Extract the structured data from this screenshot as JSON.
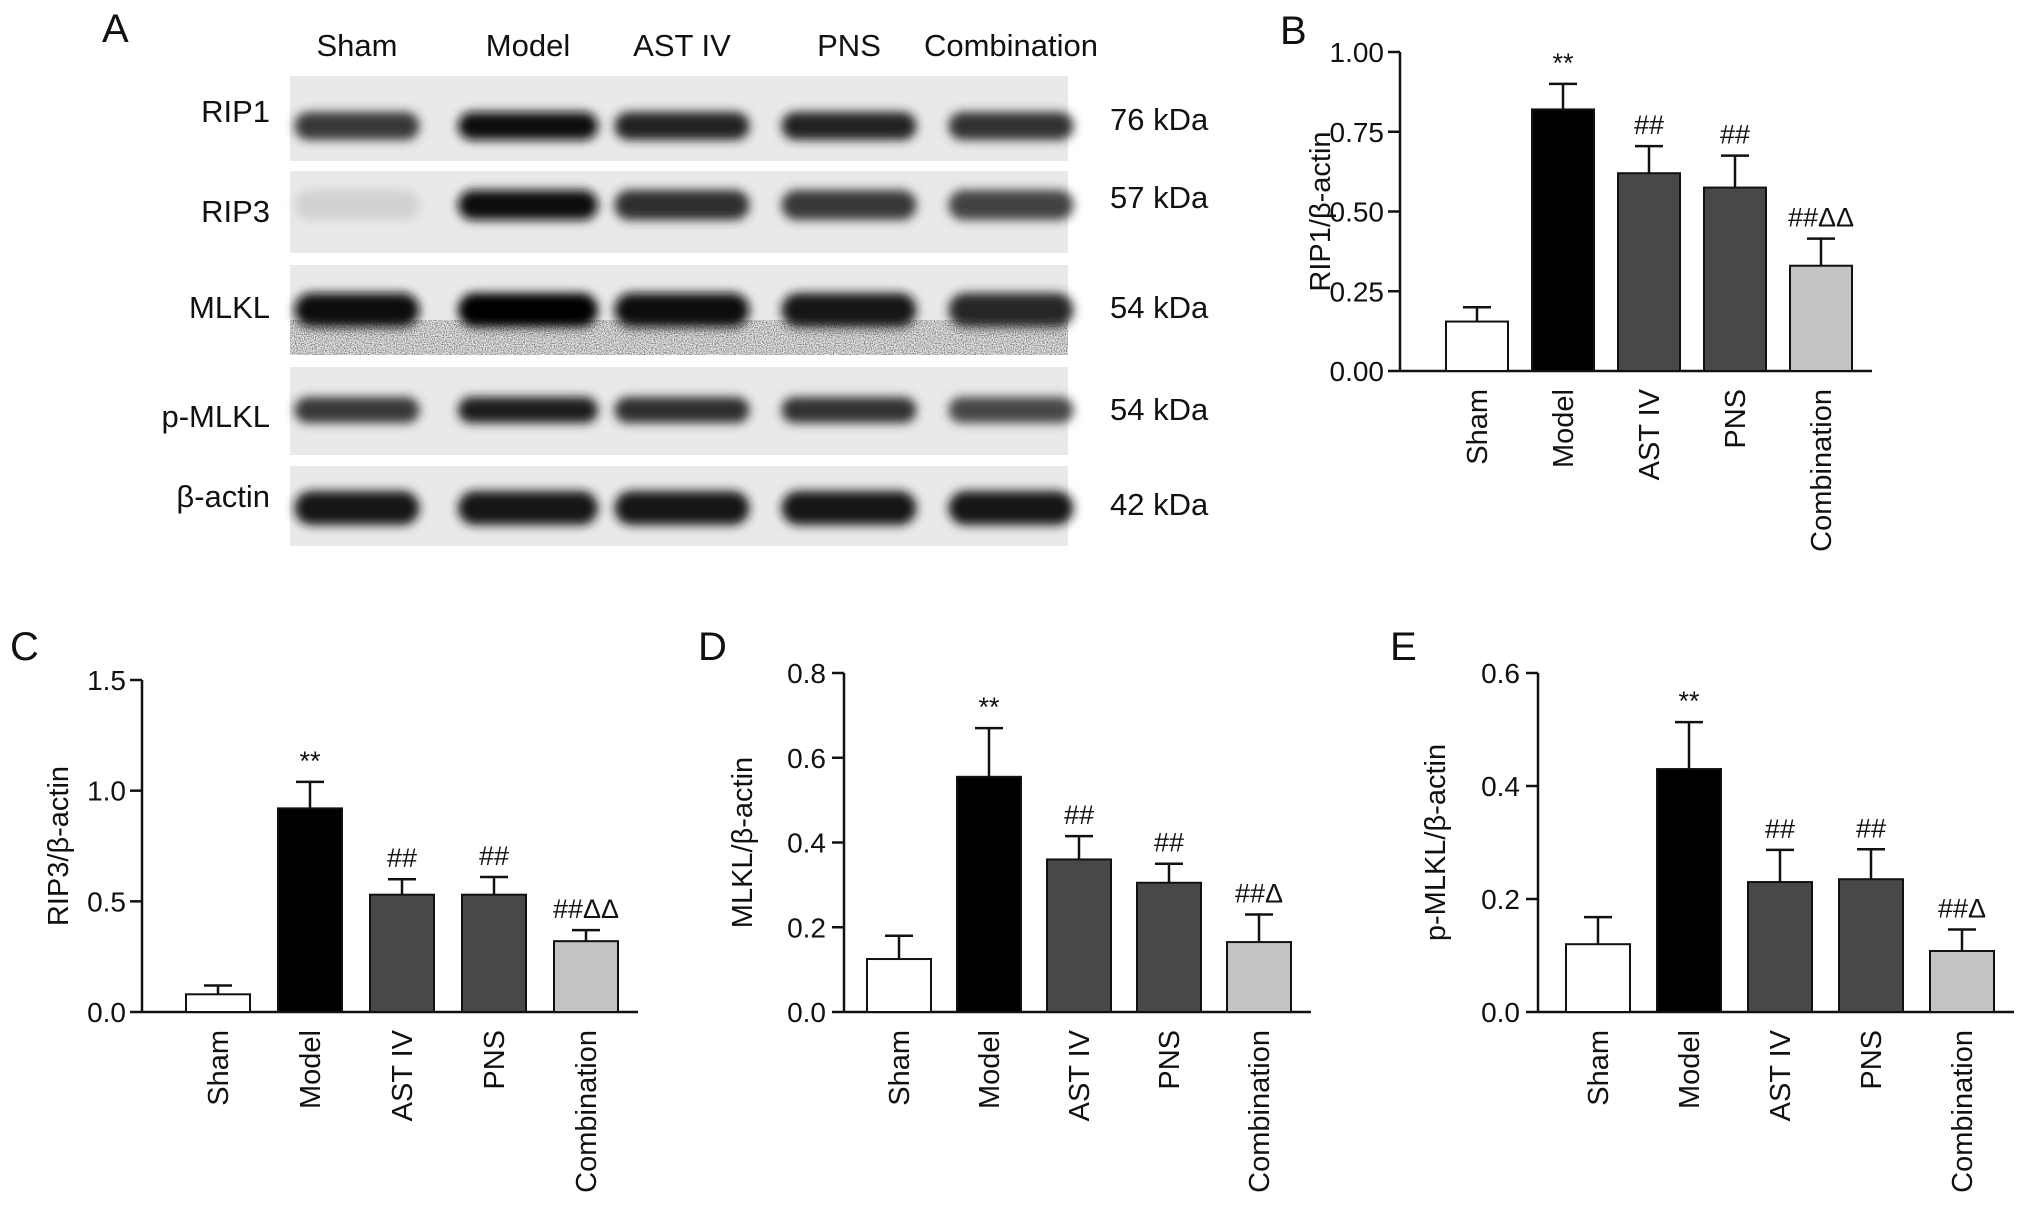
{
  "panels": {
    "A": "A",
    "B": "B",
    "C": "C",
    "D": "D",
    "E": "E"
  },
  "blot": {
    "lanes": [
      "Sham",
      "Model",
      "AST IV",
      "PNS",
      "Combination"
    ],
    "rows": [
      {
        "protein": "RIP1",
        "kda": "76 kDa"
      },
      {
        "protein": "RIP3",
        "kda": "57 kDa"
      },
      {
        "protein": "MLKL",
        "kda": "54 kDa"
      },
      {
        "protein": "p-MLKL",
        "kda": "54 kDa"
      },
      {
        "protein": "β-actin",
        "kda": "42 kDa"
      }
    ]
  },
  "colors": {
    "Sham": "#ffffff",
    "Model": "#000000",
    "AST IV": "#484848",
    "PNS": "#484848",
    "Combination": "#c4c4c4"
  },
  "chart_data": [
    {
      "panel": "B",
      "type": "bar",
      "categories": [
        "Sham",
        "Model",
        "AST IV",
        "PNS",
        "Combination"
      ],
      "values": [
        0.155,
        0.82,
        0.62,
        0.575,
        0.33
      ],
      "errors": [
        0.045,
        0.08,
        0.085,
        0.1,
        0.085
      ],
      "annotations": [
        "",
        "**",
        "##",
        "##",
        "##ΔΔ"
      ],
      "ylabel": "RIP1/β-actin",
      "ylim": [
        0,
        1.0
      ],
      "yticks": [
        "0.00",
        "0.25",
        "0.50",
        "0.75",
        "1.00"
      ]
    },
    {
      "panel": "C",
      "type": "bar",
      "categories": [
        "Sham",
        "Model",
        "AST IV",
        "PNS",
        "Combination"
      ],
      "values": [
        0.08,
        0.92,
        0.53,
        0.53,
        0.32
      ],
      "errors": [
        0.04,
        0.12,
        0.07,
        0.08,
        0.05
      ],
      "annotations": [
        "",
        "**",
        "##",
        "##",
        "##ΔΔ"
      ],
      "ylabel": "RIP3/β-actin",
      "ylim": [
        0,
        1.5
      ],
      "yticks": [
        "0.0",
        "0.5",
        "1.0",
        "1.5"
      ]
    },
    {
      "panel": "D",
      "type": "bar",
      "categories": [
        "Sham",
        "Model",
        "AST IV",
        "PNS",
        "Combination"
      ],
      "values": [
        0.125,
        0.555,
        0.36,
        0.305,
        0.165
      ],
      "errors": [
        0.055,
        0.115,
        0.055,
        0.045,
        0.065
      ],
      "annotations": [
        "",
        "**",
        "##",
        "##",
        "##Δ"
      ],
      "ylabel": "MLKL/β-actin",
      "ylim": [
        0,
        0.8
      ],
      "yticks": [
        "0.0",
        "0.2",
        "0.4",
        "0.6",
        "0.8"
      ]
    },
    {
      "panel": "E",
      "type": "bar",
      "categories": [
        "Sham",
        "Model",
        "AST IV",
        "PNS",
        "Combination"
      ],
      "values": [
        0.12,
        0.43,
        0.23,
        0.235,
        0.108
      ],
      "errors": [
        0.048,
        0.083,
        0.057,
        0.053,
        0.038
      ],
      "annotations": [
        "",
        "**",
        "##",
        "##",
        "##Δ"
      ],
      "ylabel": "p-MLKL/β-actin",
      "ylim": [
        0,
        0.6
      ],
      "yticks": [
        "0.0",
        "0.2",
        "0.4",
        "0.6"
      ]
    }
  ]
}
